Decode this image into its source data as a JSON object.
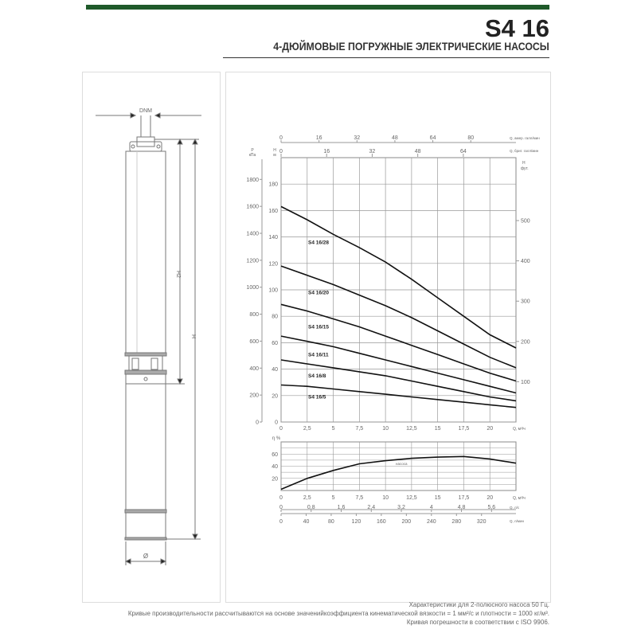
{
  "header": {
    "title": "S4 16",
    "subtitle": "4-ДЮЙМОВЫЕ ПОГРУЖНЫЕ ЭЛЕКТРИЧЕСКИЕ НАСОСЫ",
    "accent_color": "#1f5a2a"
  },
  "drawing": {
    "labels": {
      "dnm": "DNM",
      "h2": "H2",
      "h": "H",
      "diameter": "Ø"
    }
  },
  "chart_data": [
    {
      "type": "line",
      "title": "",
      "xlabel": "Q, м³/ч",
      "ylabel": "H, м",
      "xlim": [
        0,
        22.5
      ],
      "ylim": [
        0,
        200
      ],
      "grid": true,
      "x_ticks": [
        0,
        2.5,
        5,
        7.5,
        10,
        12.5,
        15,
        17.5,
        20
      ],
      "y_ticks": [
        0,
        20,
        40,
        60,
        80,
        100,
        120,
        140,
        160,
        180
      ],
      "secondary_axes": {
        "pressure": {
          "label_top": "P",
          "label_unit": "кПа",
          "ticks": [
            0,
            200,
            400,
            600,
            800,
            1000,
            1200,
            1400,
            1600,
            1800
          ]
        },
        "head_ft": {
          "label_top": "H",
          "label_unit": "фут.",
          "ticks": [
            100,
            200,
            300,
            400,
            500
          ]
        },
        "us_gpm": {
          "label": "Q, амер. галл/мин",
          "ticks": [
            0,
            16,
            32,
            48,
            64,
            80
          ]
        },
        "imp_gpm": {
          "label": "Q, брит. галл/мин",
          "ticks": [
            0,
            16,
            32,
            48,
            64
          ]
        },
        "h_unit": {
          "label_top": "H",
          "label_unit": "м"
        }
      },
      "series": [
        {
          "name": "S4 16/28",
          "x": [
            0,
            2.5,
            5,
            7.5,
            10,
            12.5,
            15,
            17.5,
            20,
            22.5
          ],
          "y": [
            163,
            153,
            142,
            132,
            121,
            108,
            94,
            80,
            66,
            56
          ]
        },
        {
          "name": "S4 16/20",
          "x": [
            0,
            2.5,
            5,
            7.5,
            10,
            12.5,
            15,
            17.5,
            20,
            22.5
          ],
          "y": [
            118,
            111,
            104,
            96,
            88,
            79,
            69,
            59,
            49,
            41
          ]
        },
        {
          "name": "S4 16/15",
          "x": [
            0,
            2.5,
            5,
            7.5,
            10,
            12.5,
            15,
            17.5,
            20,
            22.5
          ],
          "y": [
            89,
            84,
            78,
            72,
            65,
            58,
            51,
            44,
            37,
            31
          ]
        },
        {
          "name": "S4 16/11",
          "x": [
            0,
            2.5,
            5,
            7.5,
            10,
            12.5,
            15,
            17.5,
            20,
            22.5
          ],
          "y": [
            65,
            61,
            57,
            52,
            47,
            42,
            37,
            32,
            27,
            22
          ]
        },
        {
          "name": "S4 16/8",
          "x": [
            0,
            2.5,
            5,
            7.5,
            10,
            12.5,
            15,
            17.5,
            20,
            22.5
          ],
          "y": [
            47,
            44,
            41,
            38,
            35,
            31,
            27,
            23,
            19,
            16
          ]
        },
        {
          "name": "S4 16/5",
          "x": [
            0,
            2.5,
            5,
            7.5,
            10,
            12.5,
            15,
            17.5,
            20,
            22.5
          ],
          "y": [
            28,
            27,
            25,
            23,
            21,
            19,
            17,
            15,
            13,
            11
          ]
        }
      ]
    },
    {
      "type": "line",
      "title": "",
      "ylabel": "η %",
      "xlabel": "Q, м³/ч",
      "xlim": [
        0,
        22.5
      ],
      "ylim": [
        0,
        80
      ],
      "grid": true,
      "y_ticks": [
        20,
        40,
        60
      ],
      "x_ticks": [
        0,
        2.5,
        5,
        7.5,
        10,
        12.5,
        15,
        17.5,
        20
      ],
      "x_tick_labels": [
        "0",
        "2,5",
        "5",
        "7,5",
        "10",
        "12,5",
        "15",
        "17,5",
        "20"
      ],
      "curve_label": "насоса",
      "series": [
        {
          "x": [
            0,
            2.5,
            5,
            7.5,
            10,
            12.5,
            15,
            17.5,
            20,
            22.5
          ],
          "y": [
            2,
            20,
            33,
            44,
            49,
            53,
            55,
            56,
            52,
            45
          ]
        }
      ],
      "secondary_axes": {
        "ls": {
          "label": "Q, л/с",
          "ticks": [
            "0",
            "0,8",
            "1,6",
            "2,4",
            "3,2",
            "4",
            "4,8",
            "5,6"
          ],
          "values": [
            0,
            0.8,
            1.6,
            2.4,
            3.2,
            4,
            4.8,
            5.6
          ]
        },
        "lmin": {
          "label": "Q, л/мин",
          "ticks": [
            "0",
            "40",
            "80",
            "120",
            "160",
            "200",
            "240",
            "280",
            "320"
          ],
          "values": [
            0,
            40,
            80,
            120,
            160,
            200,
            240,
            280,
            320
          ]
        }
      }
    }
  ],
  "notes": [
    "Характеристики для 2-полюсного насоса 50 Гц.",
    "Кривые производительности рассчитываются на основе значенийкоэффициента кинематической вязкости = 1 мм²/с и плотности = 1000 кг/м³.",
    "Кривая погрешности в соответствии с ISO 9906."
  ]
}
